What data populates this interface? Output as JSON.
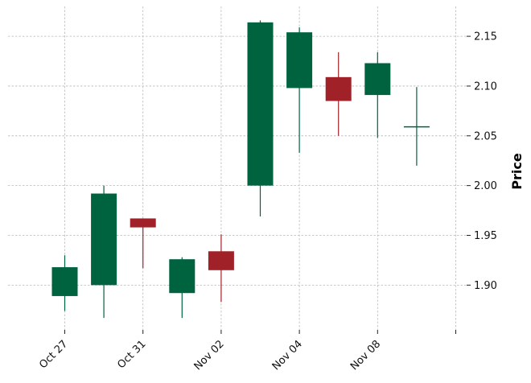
{
  "chart_data": {
    "type": "candlestick",
    "title": "",
    "xlabel": "",
    "ylabel": "Price",
    "ylim": [
      1.855,
      2.18
    ],
    "yticks": [
      1.9,
      1.95,
      2.0,
      2.05,
      2.1,
      2.15
    ],
    "ytick_labels": [
      "1.90",
      "1.95",
      "2.00",
      "2.05",
      "2.10",
      "2.15"
    ],
    "xtick_positions": [
      0,
      2,
      4,
      6,
      8,
      10
    ],
    "xtick_labels": [
      "Oct 27",
      "Oct 31",
      "Nov 02",
      "Nov 04",
      "Nov 08",
      ""
    ],
    "grid": true,
    "y_axis_side": "right",
    "colors": {
      "up": "#006340",
      "down": "#a02128",
      "grid": "#b8b8b8"
    },
    "candles": [
      {
        "open": 1.889,
        "high": 1.93,
        "low": 1.874,
        "close": 1.918
      },
      {
        "open": 1.9,
        "high": 2.0,
        "low": 1.867,
        "close": 1.992
      },
      {
        "open": 1.967,
        "high": 1.967,
        "low": 1.917,
        "close": 1.958
      },
      {
        "open": 1.892,
        "high": 1.928,
        "low": 1.867,
        "close": 1.926
      },
      {
        "open": 1.934,
        "high": 1.951,
        "low": 1.883,
        "close": 1.915
      },
      {
        "open": 2.0,
        "high": 2.166,
        "low": 1.969,
        "close": 2.164
      },
      {
        "open": 2.098,
        "high": 2.159,
        "low": 2.033,
        "close": 2.154
      },
      {
        "open": 2.109,
        "high": 2.134,
        "low": 2.05,
        "close": 2.085
      },
      {
        "open": 2.091,
        "high": 2.134,
        "low": 2.048,
        "close": 2.123
      },
      {
        "open": 2.059,
        "high": 2.099,
        "low": 2.02,
        "close": 2.059
      }
    ]
  }
}
